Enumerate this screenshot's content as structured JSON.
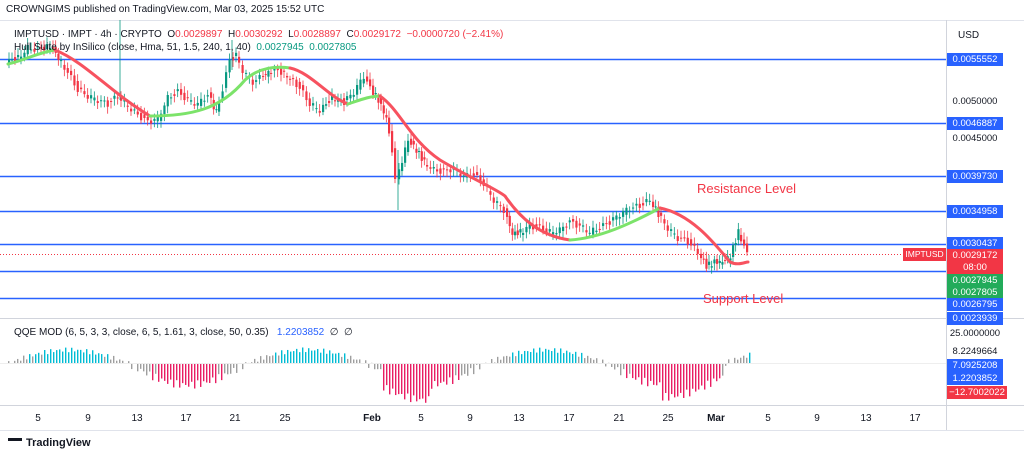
{
  "header": {
    "published": "CROWNGIMS published on TradingView.com, Mar 03, 2025 15:52 UTC"
  },
  "legend": {
    "symbol": "IMPTUSD · IMPT · 4h · CRYPTO",
    "o_label": "O",
    "o_value": "0.0029897",
    "h_label": "H",
    "h_value": "0.0030292",
    "l_label": "L",
    "l_value": "0.0028897",
    "c_label": "C",
    "c_value": "0.0029172",
    "change": "−0.0000720 (−2.41%)",
    "indicator": "Hull Suite by InSilico (close, Hma, 51, 1.5, 240, 1, 40)",
    "ind_val1": "0.0027945",
    "ind_val2": "0.0027805"
  },
  "qqe": {
    "label": "QQE MOD (6, 5, 3, 3, close, 6, 5, 1.61, 3, close, 50, 0.35)",
    "value": "1.2203852",
    "icon1": "∅",
    "icon2": "∅"
  },
  "annotations": {
    "resistance": "Resistance Level",
    "support": "Support Level"
  },
  "price_axis": {
    "currency": "USD",
    "labels": [
      {
        "text": "0.0055552",
        "style": "line"
      },
      {
        "text": "0.0050000",
        "style": "plain"
      },
      {
        "text": "0.0046887",
        "style": "line"
      },
      {
        "text": "0.0045000",
        "style": "plain"
      },
      {
        "text": "0.0039730",
        "style": "line"
      },
      {
        "text": "0.0034958",
        "style": "line"
      },
      {
        "text": "0.0030437",
        "style": "line"
      },
      {
        "text": "0.0029172",
        "style": "red"
      },
      {
        "text": "08:00",
        "style": "red"
      },
      {
        "text": "0.0027945",
        "style": "grn"
      },
      {
        "text": "0.0027805",
        "style": "grn"
      },
      {
        "text": "0.0026795",
        "style": "line"
      },
      {
        "text": "0.0023939",
        "style": "line"
      }
    ],
    "symbol_tag": "IMPTUSD"
  },
  "qqe_axis": {
    "labels": [
      {
        "text": "25.0000000",
        "style": "plain"
      },
      {
        "text": "8.2249664",
        "style": "plain"
      },
      {
        "text": "7.0925208",
        "style": "line"
      },
      {
        "text": "1.2203852",
        "style": "line"
      },
      {
        "text": "−12.7002022",
        "style": "red"
      }
    ]
  },
  "time_axis": [
    "5",
    "9",
    "13",
    "17",
    "21",
    "25",
    "Feb",
    "5",
    "9",
    "13",
    "17",
    "21",
    "25",
    "Mar",
    "5",
    "9",
    "13",
    "17"
  ],
  "footer": {
    "brand": "TradingView"
  },
  "colors": {
    "line": "#2962ff",
    "hull_down": "#f7525f",
    "hull_up": "#7ce36a",
    "up": "#089981",
    "down": "#f23645"
  },
  "chart_data": {
    "type": "line",
    "levels": [
      0.0055552,
      0.0046887,
      0.003973,
      0.0034958,
      0.0030437,
      0.0026795,
      0.0023939
    ],
    "last_price": 0.0029172,
    "ylim": [
      0.0023,
      0.0058
    ]
  }
}
